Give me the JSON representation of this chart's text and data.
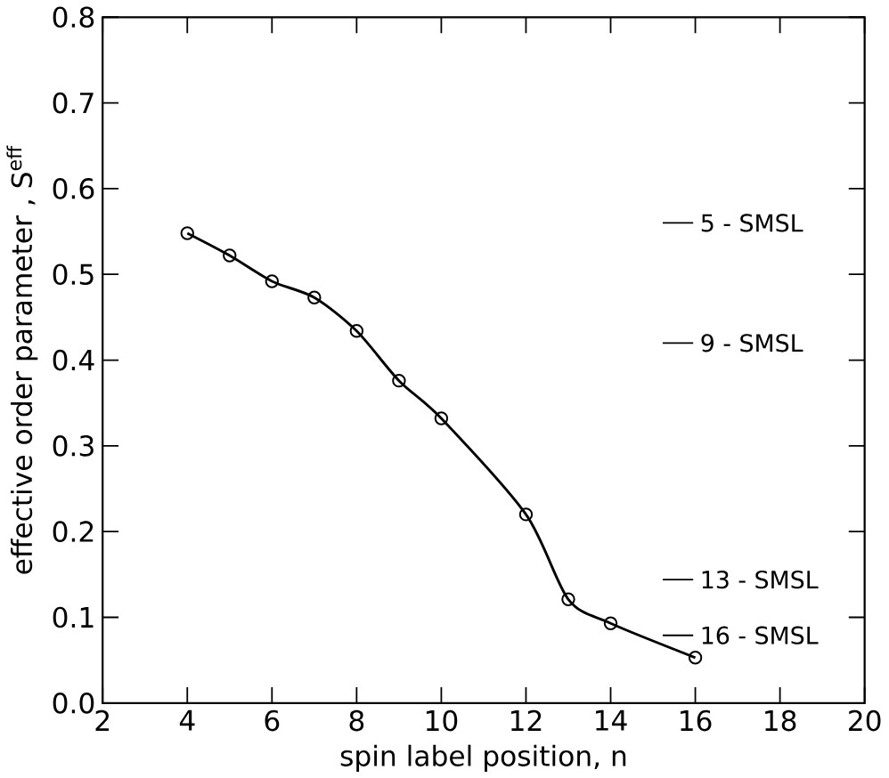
{
  "chart_data": {
    "type": "line",
    "xlabel": "spin label position, n",
    "ylabel": "effective order parameter , S$^{eff}$",
    "xlim": [
      2,
      20
    ],
    "ylim": [
      0,
      0.8
    ],
    "xticks": [
      2,
      4,
      6,
      8,
      10,
      12,
      14,
      16,
      18,
      20
    ],
    "yticks": [
      {
        "value": 0,
        "label": "0.0"
      },
      0.1,
      0.2,
      0.3,
      0.4,
      0.5,
      0.6,
      0.7,
      0.8
    ],
    "grid": false,
    "marker": "circle",
    "line_style": "solid",
    "series": [
      {
        "color": "#000000",
        "x": [
          4,
          5,
          6,
          7,
          8,
          9,
          10,
          12,
          13,
          14,
          16
        ],
        "values": [
          0.548,
          0.522,
          0.492,
          0.473,
          0.434,
          0.376,
          0.332,
          0.22,
          0.121,
          0.093,
          0.053
        ]
      }
    ],
    "ref_lines": [
      {
        "axis": "y",
        "value": 0.56,
        "label": "5 - SMSL"
      },
      {
        "axis": "y",
        "value": 0.42,
        "label": "9 - SMSL"
      },
      {
        "axis": "y",
        "value": 0.144,
        "label": "13 - SMSL"
      },
      {
        "axis": "y",
        "value": 0.079,
        "label": "16 - SMSL"
      }
    ]
  }
}
